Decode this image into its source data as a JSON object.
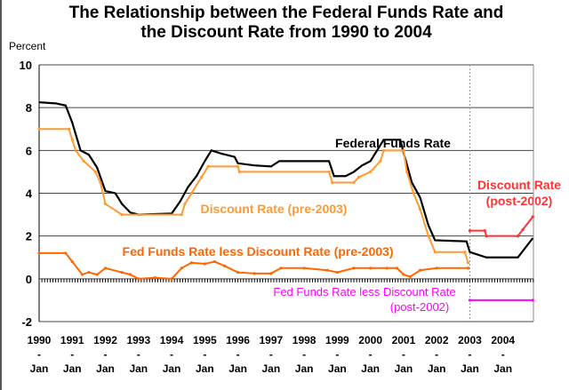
{
  "chart_data": {
    "type": "line",
    "title_lines": [
      "The Relationship between the Federal Funds Rate and",
      "the Discount Rate from 1990 to 2004"
    ],
    "ylabel": "Percent",
    "ylim": [
      -2,
      10
    ],
    "yticks": [
      -2,
      0,
      2,
      4,
      6,
      8,
      10
    ],
    "xlim": [
      1990,
      2004.92
    ],
    "xtick_labels": [
      "1990",
      "1991",
      "1992",
      "1993",
      "1994",
      "1995",
      "1996",
      "1997",
      "1998",
      "1999",
      "2000",
      "2001",
      "2002",
      "2003",
      "2004"
    ],
    "xtick_sub": "-",
    "xtick_month": "Jan",
    "grid": true,
    "divider_x": 2003,
    "series": [
      {
        "name": "Federal Funds Rate",
        "color": "#000000",
        "x": [
          1990,
          1990.5,
          1990.8,
          1991,
          1991.25,
          1991.5,
          1991.75,
          1992,
          1992.3,
          1992.5,
          1992.75,
          1993,
          1994,
          1994.25,
          1994.5,
          1994.75,
          1995,
          1995.2,
          1995.5,
          1995.9,
          1996,
          1996.5,
          1997,
          1997.25,
          1998,
          1998.75,
          1998.9,
          1999.25,
          1999.5,
          1999.75,
          2000,
          2000.4,
          2000.9,
          2001,
          2001.25,
          2001.5,
          2001.75,
          2001.95,
          2002.9,
          2003,
          2003.5,
          2004.45,
          2004.9
        ],
        "y": [
          8.25,
          8.2,
          8.1,
          7.3,
          6.0,
          5.8,
          5.2,
          4.1,
          4.0,
          3.5,
          3.1,
          3.0,
          3.05,
          3.6,
          4.3,
          4.8,
          5.5,
          6.0,
          5.85,
          5.7,
          5.4,
          5.3,
          5.25,
          5.5,
          5.5,
          5.5,
          4.8,
          4.8,
          5.0,
          5.3,
          5.5,
          6.5,
          6.5,
          5.9,
          4.5,
          3.8,
          2.5,
          1.8,
          1.75,
          1.25,
          1.0,
          1.0,
          1.9
        ]
      },
      {
        "name": "Discount Rate (pre-2003)",
        "color": "#FF9933",
        "x": [
          1990,
          1990.9,
          1991,
          1991.1,
          1991.35,
          1991.7,
          1991.85,
          1992,
          1992.5,
          1994.3,
          1994.4,
          1994.6,
          1994.9,
          1995.1,
          1996,
          1996.05,
          1998.75,
          1998.85,
          1999.5,
          1999.65,
          2000,
          2000.3,
          2000.4,
          2001,
          2001.1,
          2001.3,
          2001.5,
          2001.75,
          2001.95,
          2002.85,
          2002.95
        ],
        "y": [
          7.0,
          7.0,
          6.5,
          6.0,
          5.5,
          5.0,
          4.5,
          3.5,
          3.0,
          3.0,
          3.5,
          4.0,
          4.75,
          5.25,
          5.25,
          5.0,
          5.0,
          4.5,
          4.5,
          4.75,
          5.0,
          5.5,
          6.0,
          6.0,
          5.0,
          4.0,
          3.25,
          2.0,
          1.25,
          1.25,
          0.75
        ]
      },
      {
        "name": "Fed Funds Rate less Discount Rate (pre-2003)",
        "color": "#FF6600",
        "x": [
          1990,
          1990.8,
          1991,
          1991.3,
          1991.5,
          1991.75,
          1992,
          1992.5,
          1992.75,
          1993,
          1993.5,
          1994,
          1994.3,
          1994.6,
          1995,
          1995.3,
          1995.6,
          1996,
          1996.5,
          1997,
          1997.3,
          1998,
          1998.7,
          1999,
          1999.5,
          2000,
          2000.5,
          2000.8,
          2001,
          2001.2,
          2001.5,
          2002,
          2002.95
        ],
        "y": [
          1.2,
          1.2,
          0.8,
          0.2,
          0.3,
          0.2,
          0.5,
          0.3,
          0.2,
          0,
          0.05,
          0,
          0.5,
          0.75,
          0.7,
          0.8,
          0.6,
          0.3,
          0.25,
          0.25,
          0.5,
          0.5,
          0.4,
          0.3,
          0.5,
          0.5,
          0.5,
          0.5,
          0.2,
          0.1,
          0.4,
          0.5,
          0.5
        ]
      },
      {
        "name": "Discount Rate (post-2002)",
        "label_lines": [
          "Discount Rate",
          "(post-2002)"
        ],
        "color": "#FF3333",
        "x": [
          2003,
          2003.45,
          2003.5,
          2004.45,
          2004.6,
          2004.9
        ],
        "y": [
          2.25,
          2.25,
          2.0,
          2.0,
          2.3,
          2.9
        ]
      },
      {
        "name": "Fed Funds Rate less Discount Rate (post-2002)",
        "label_lines": [
          "Fed Funds Rate less Discount Rate",
          "(post-2002)"
        ],
        "color": "#FF00FF",
        "x": [
          2003,
          2004.9
        ],
        "y": [
          -1.0,
          -1.0
        ]
      }
    ]
  }
}
